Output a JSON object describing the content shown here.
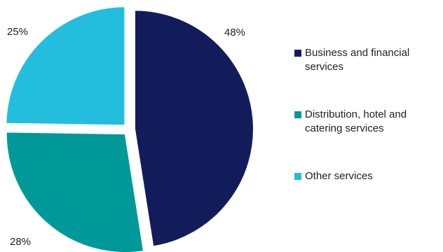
{
  "chart_data": {
    "type": "pie",
    "title": "",
    "categories": [
      "Business and financial services",
      "Distribution, hotel and catering services",
      "Other services"
    ],
    "values": [
      48,
      28,
      25
    ],
    "labels": [
      "48%",
      "28%",
      "25%"
    ],
    "colors": [
      "#131c5a",
      "#009999",
      "#23bddd"
    ],
    "start_angle_deg": 0,
    "direction": "clockwise",
    "exploded": true,
    "legend_position": "right"
  }
}
